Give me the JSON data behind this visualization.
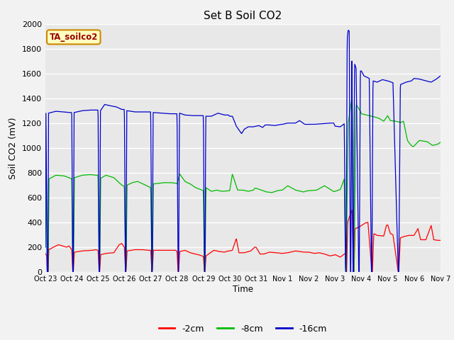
{
  "title": "Set B Soil CO2",
  "ylabel": "Soil CO2 (mV)",
  "xlabel": "Time",
  "annotation": "TA_soilco2",
  "ylim": [
    0,
    2000
  ],
  "fig_bg": "#f2f2f2",
  "plot_bg": "#e8e8e8",
  "series": {
    "2cm": {
      "label": "-2cm",
      "color": "#ff0000"
    },
    "8cm": {
      "label": "-8cm",
      "color": "#00bb00"
    },
    "16cm": {
      "label": "-16cm",
      "color": "#0000cc"
    }
  },
  "xtick_labels": [
    "Oct 23",
    "Oct 24",
    "Oct 25",
    "Oct 26",
    "Oct 27",
    "Oct 28",
    "Oct 29",
    "Oct 30",
    "Oct 31",
    "Nov 1",
    "Nov 2",
    "Nov 3",
    "Nov 4",
    "Nov 5",
    "Nov 6",
    "Nov 7"
  ],
  "ytick_labels": [
    0,
    200,
    400,
    600,
    800,
    1000,
    1200,
    1400,
    1600,
    1800,
    2000
  ]
}
